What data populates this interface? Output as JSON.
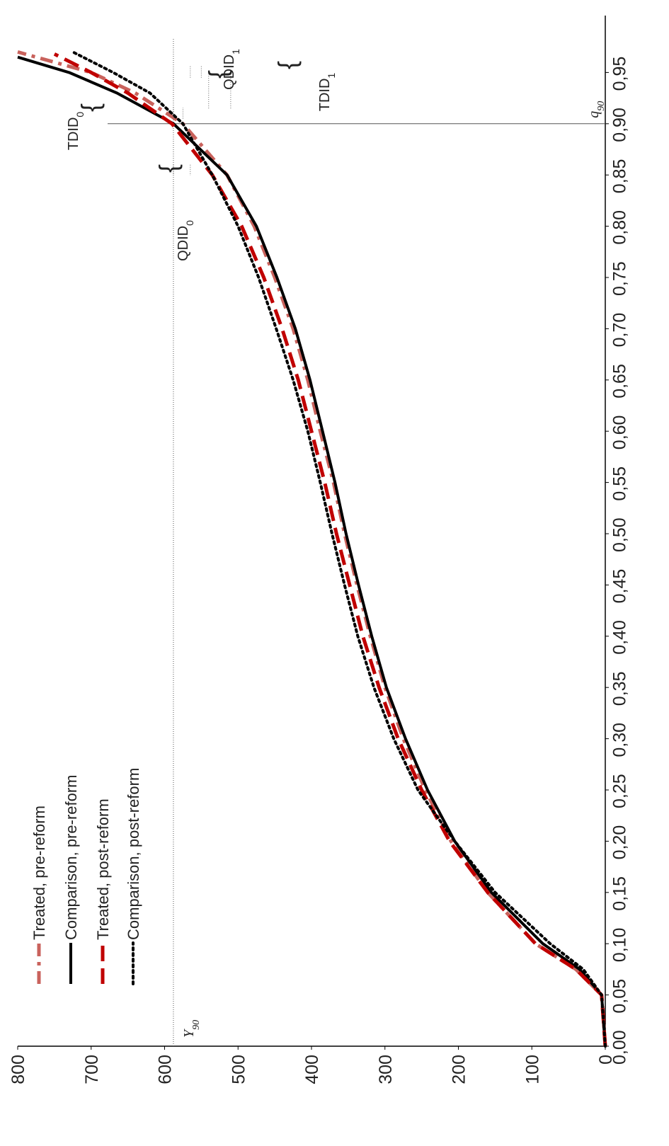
{
  "colors": {
    "treated_pre": "#c9625c",
    "comparison_pre": "#000000",
    "treated_post": "#c00000",
    "comparison_post": "#000000"
  },
  "chart_data": {
    "type": "line",
    "orientation": "rotated-90-clockwise",
    "xlim": [
      0.0,
      1.0
    ],
    "ylim": [
      0,
      800
    ],
    "x_ticks": [
      "0,00",
      "0,05",
      "0,10",
      "0,15",
      "0,20",
      "0,25",
      "0,30",
      "0,35",
      "0,40",
      "0,45",
      "0,50",
      "0,55",
      "0,60",
      "0,65",
      "0,70",
      "0,75",
      "0,80",
      "0,85",
      "0,90",
      "0,95"
    ],
    "y_ticks": [
      "0",
      "100",
      "200",
      "300",
      "400",
      "500",
      "600",
      "700",
      "800"
    ],
    "grid": false,
    "legend_position": "bottom-left",
    "series": [
      {
        "name": "Treated, pre-reform",
        "color_key": "treated_pre",
        "style": "dash-dot",
        "x": [
          0.0,
          0.05,
          0.075,
          0.1,
          0.15,
          0.2,
          0.25,
          0.3,
          0.35,
          0.4,
          0.45,
          0.5,
          0.55,
          0.6,
          0.65,
          0.7,
          0.75,
          0.8,
          0.85,
          0.9,
          0.93,
          0.95,
          0.97
        ],
        "y": [
          0,
          5,
          40,
          95,
          160,
          210,
          245,
          275,
          300,
          320,
          338,
          355,
          370,
          388,
          405,
          425,
          450,
          478,
          515,
          575,
          640,
          700,
          800
        ]
      },
      {
        "name": "Comparison, pre-reform",
        "color_key": "comparison_pre",
        "style": "solid",
        "x": [
          0.0,
          0.05,
          0.075,
          0.1,
          0.15,
          0.2,
          0.25,
          0.3,
          0.35,
          0.4,
          0.45,
          0.5,
          0.55,
          0.6,
          0.65,
          0.7,
          0.75,
          0.8,
          0.85,
          0.9,
          0.93,
          0.95,
          0.965
        ],
        "y": [
          0,
          5,
          35,
          85,
          155,
          205,
          242,
          272,
          298,
          318,
          336,
          353,
          368,
          385,
          402,
          422,
          447,
          475,
          515,
          588,
          665,
          730,
          800
        ]
      },
      {
        "name": "Treated, post-reform",
        "color_key": "treated_post",
        "style": "dashed",
        "x": [
          0.0,
          0.05,
          0.075,
          0.1,
          0.15,
          0.2,
          0.25,
          0.3,
          0.35,
          0.4,
          0.45,
          0.5,
          0.55,
          0.6,
          0.65,
          0.7,
          0.75,
          0.8,
          0.85,
          0.9,
          0.93,
          0.95,
          0.968
        ],
        "y": [
          0,
          5,
          40,
          95,
          160,
          212,
          250,
          282,
          308,
          330,
          348,
          366,
          382,
          400,
          418,
          440,
          465,
          495,
          535,
          590,
          650,
          700,
          750
        ]
      },
      {
        "name": "Comparison, post-reform",
        "color_key": "comparison_post",
        "style": "dotted",
        "x": [
          0.0,
          0.05,
          0.075,
          0.1,
          0.15,
          0.2,
          0.25,
          0.3,
          0.35,
          0.4,
          0.45,
          0.5,
          0.55,
          0.6,
          0.65,
          0.7,
          0.75,
          0.8,
          0.85,
          0.9,
          0.93,
          0.95,
          0.97
        ],
        "y": [
          0,
          5,
          30,
          75,
          150,
          205,
          255,
          288,
          315,
          337,
          355,
          372,
          388,
          405,
          425,
          448,
          472,
          500,
          535,
          575,
          620,
          670,
          725
        ]
      }
    ],
    "reference_lines": [
      {
        "axis": "x",
        "value": 0.9,
        "label": "q90"
      },
      {
        "axis": "y",
        "value": 588,
        "label": "Yq90"
      }
    ],
    "annotations": [
      {
        "label": "QDID",
        "subscript": "0",
        "x": 0.86,
        "y_from": 565,
        "y_to": 588
      },
      {
        "label": "TDID",
        "subscript": "0",
        "x": 0.905,
        "y_from": 588,
        "y_to": 575
      },
      {
        "label": "QDID",
        "subscript": "1",
        "x": 0.915,
        "y_from": 510,
        "y_to": 540
      },
      {
        "label": "TDID",
        "subscript": "1",
        "x": 0.945,
        "y_from": 550,
        "y_to": 565
      }
    ]
  }
}
